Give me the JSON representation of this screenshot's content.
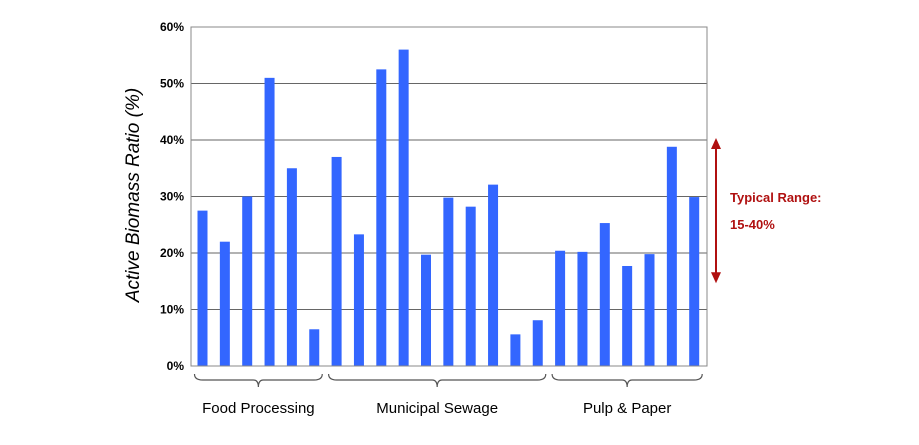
{
  "chart_data": {
    "type": "bar",
    "ylabel": "Active Biomass Ratio (%)",
    "ylim": [
      0,
      60
    ],
    "yticks": [
      "0%",
      "10%",
      "20%",
      "30%",
      "40%",
      "50%",
      "60%"
    ],
    "grid": true,
    "bar_color": "#3366ff",
    "groups": [
      {
        "label": "Food Processing",
        "values": [
          27.5,
          22,
          30,
          51,
          35,
          6.5
        ]
      },
      {
        "label": "Municipal Sewage",
        "values": [
          37,
          23.3,
          52.5,
          56,
          19.7,
          29.8,
          28.2,
          32.1,
          5.6,
          8.1
        ]
      },
      {
        "label": "Pulp & Paper",
        "values": [
          20.4,
          20.2,
          25.3,
          17.7,
          19.8,
          38.8,
          29.9
        ]
      }
    ],
    "annotation": {
      "line1": "Typical Range:",
      "line2": "15-40%",
      "range": [
        15,
        40
      ],
      "color": "#b01010"
    }
  }
}
